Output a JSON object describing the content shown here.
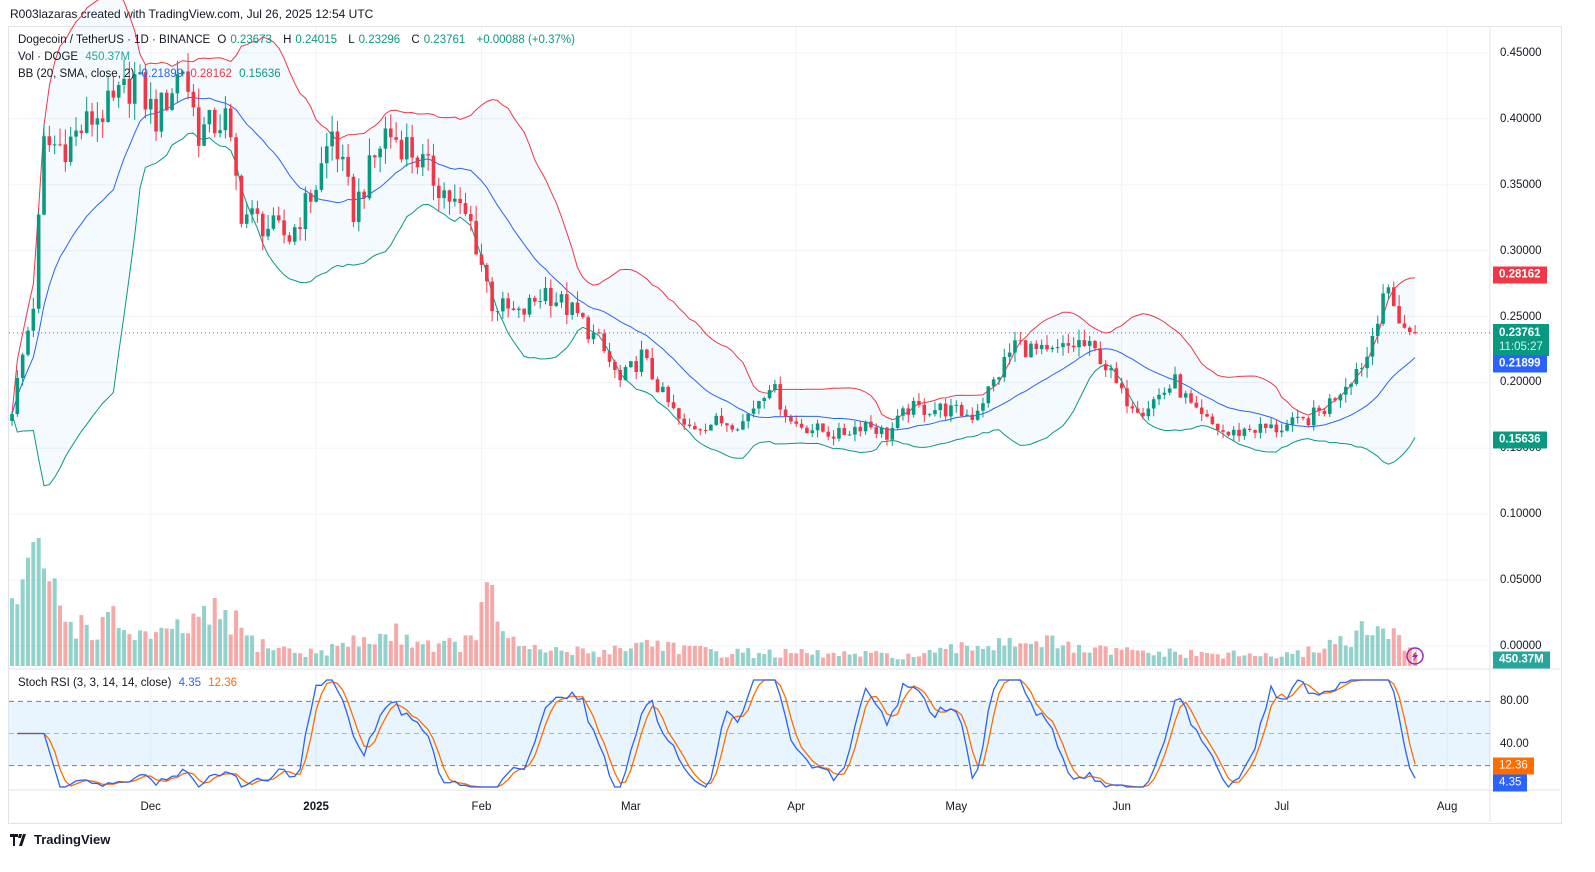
{
  "caption": "R003lazaras created with TradingView.com, Jul 26, 2025 12:54 UTC",
  "legend": {
    "symbol": "Dogecoin / TetherUS · 1D · BINANCE",
    "o_label": "O",
    "o": "0.23673",
    "h_label": "H",
    "h": "0.24015",
    "l_label": "L",
    "l": "0.23296",
    "c_label": "C",
    "c": "0.23761",
    "change": "+0.00088 (+0.37%)",
    "vol_label": "Vol · DOGE",
    "vol": "450.37M",
    "bb_label": "BB (20, SMA, close, 2)",
    "bb_basis": "0.21899",
    "bb_upper": "0.28162",
    "bb_lower": "0.15636",
    "stoch_label": "Stoch RSI (3, 3, 14, 14, close)",
    "stoch_k": "4.35",
    "stoch_d": "12.36"
  },
  "tags": {
    "last_price": "0.23761",
    "countdown": "11:05:27",
    "bb_upper": "0.28162",
    "bb_basis": "0.21899",
    "bb_lower": "0.15636",
    "volume": "450.37M",
    "stoch_d": "12.36",
    "stoch_k": "4.35"
  },
  "footer": {
    "brand": "TradingView"
  },
  "colors": {
    "up": "#089981",
    "down": "#f23645",
    "basis": "#2962ff",
    "upper": "#f23645",
    "lower": "#089981",
    "k": "#2962ff",
    "d": "#ff6d00"
  },
  "chart_data": {
    "type": "candlestick",
    "title": "Dogecoin / TetherUS · 1D · BINANCE",
    "start_date": "2024-11-05",
    "end_date": "2025-07-26",
    "days": 264,
    "close_keypoints": [
      [
        0,
        0.18
      ],
      [
        4,
        0.26
      ],
      [
        6,
        0.38
      ],
      [
        10,
        0.38
      ],
      [
        15,
        0.4
      ],
      [
        19,
        0.41
      ],
      [
        23,
        0.43
      ],
      [
        27,
        0.4
      ],
      [
        32,
        0.44
      ],
      [
        35,
        0.39
      ],
      [
        40,
        0.4
      ],
      [
        43,
        0.33
      ],
      [
        47,
        0.32
      ],
      [
        52,
        0.31
      ],
      [
        57,
        0.35
      ],
      [
        60,
        0.39
      ],
      [
        64,
        0.33
      ],
      [
        70,
        0.39
      ],
      [
        74,
        0.38
      ],
      [
        78,
        0.36
      ],
      [
        82,
        0.34
      ],
      [
        86,
        0.32
      ],
      [
        90,
        0.26
      ],
      [
        95,
        0.25
      ],
      [
        100,
        0.27
      ],
      [
        106,
        0.25
      ],
      [
        110,
        0.23
      ],
      [
        114,
        0.2
      ],
      [
        118,
        0.22
      ],
      [
        122,
        0.19
      ],
      [
        126,
        0.165
      ],
      [
        132,
        0.17
      ],
      [
        137,
        0.17
      ],
      [
        142,
        0.2
      ],
      [
        146,
        0.17
      ],
      [
        150,
        0.165
      ],
      [
        155,
        0.16
      ],
      [
        160,
        0.17
      ],
      [
        164,
        0.16
      ],
      [
        168,
        0.18
      ],
      [
        174,
        0.18
      ],
      [
        180,
        0.175
      ],
      [
        184,
        0.2
      ],
      [
        188,
        0.23
      ],
      [
        194,
        0.22
      ],
      [
        200,
        0.23
      ],
      [
        204,
        0.22
      ],
      [
        208,
        0.19
      ],
      [
        212,
        0.18
      ],
      [
        218,
        0.2
      ],
      [
        222,
        0.175
      ],
      [
        228,
        0.16
      ],
      [
        232,
        0.165
      ],
      [
        237,
        0.165
      ],
      [
        242,
        0.17
      ],
      [
        246,
        0.18
      ],
      [
        250,
        0.2
      ],
      [
        254,
        0.22
      ],
      [
        257,
        0.27
      ],
      [
        260,
        0.25
      ],
      [
        262,
        0.235
      ],
      [
        263,
        0.23761
      ]
    ],
    "volume_keypoints_millions": [
      [
        0,
        1500
      ],
      [
        3,
        2400
      ],
      [
        6,
        2500
      ],
      [
        10,
        1200
      ],
      [
        15,
        900
      ],
      [
        19,
        1100
      ],
      [
        23,
        800
      ],
      [
        28,
        700
      ],
      [
        33,
        1000
      ],
      [
        40,
        1300
      ],
      [
        45,
        600
      ],
      [
        55,
        300
      ],
      [
        65,
        600
      ],
      [
        72,
        800
      ],
      [
        80,
        500
      ],
      [
        86,
        600
      ],
      [
        89,
        1700
      ],
      [
        95,
        400
      ],
      [
        110,
        350
      ],
      [
        120,
        600
      ],
      [
        130,
        350
      ],
      [
        150,
        300
      ],
      [
        170,
        250
      ],
      [
        185,
        600
      ],
      [
        190,
        700
      ],
      [
        200,
        400
      ],
      [
        220,
        300
      ],
      [
        240,
        250
      ],
      [
        255,
        900
      ],
      [
        258,
        750
      ],
      [
        263,
        450
      ]
    ],
    "price_ticks": [
      "0.45000",
      "0.40000",
      "0.35000",
      "0.30000",
      "0.25000",
      "0.20000",
      "0.15000",
      "0.10000",
      "0.05000",
      "0.00000"
    ],
    "stoch_ticks": [
      "80.00",
      "40.00"
    ],
    "time_ticks": [
      {
        "label": "Dec",
        "day": 26
      },
      {
        "label": "2025",
        "day": 57
      },
      {
        "label": "Feb",
        "day": 88
      },
      {
        "label": "Mar",
        "day": 116
      },
      {
        "label": "Apr",
        "day": 147
      },
      {
        "label": "May",
        "day": 177
      },
      {
        "label": "Jun",
        "day": 208
      },
      {
        "label": "Jul",
        "day": 238
      },
      {
        "label": "Aug",
        "day": 269
      }
    ],
    "indicators": [
      "BB (20, SMA, close, 2)",
      "Volume",
      "Stoch RSI (3, 3, 14, 14, close)"
    ]
  }
}
